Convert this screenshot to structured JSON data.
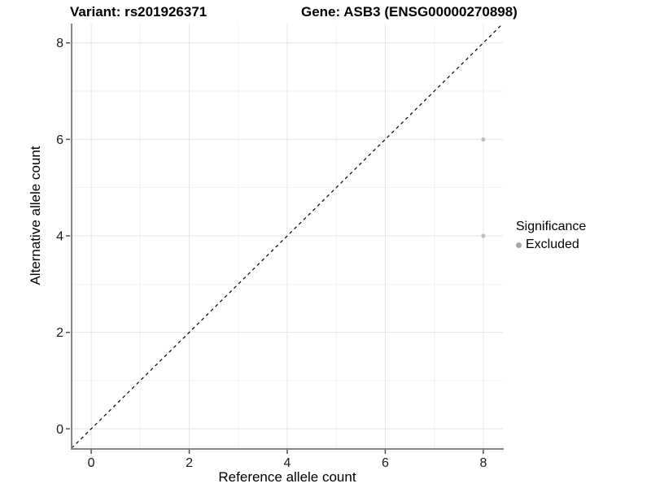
{
  "chart_data": {
    "type": "scatter",
    "title_left": "Variant: rs201926371",
    "title_right": "Gene: ASB3 (ENSG00000270898)",
    "xlabel": "Reference allele count",
    "ylabel": "Alternative allele count",
    "xlim": [
      -0.4,
      8.4
    ],
    "ylim": [
      -0.4,
      8.4
    ],
    "xticks": [
      0,
      2,
      4,
      6,
      8
    ],
    "yticks": [
      0,
      2,
      4,
      6,
      8
    ],
    "minor_xticks": [
      1,
      3,
      5,
      7
    ],
    "minor_yticks": [
      1,
      3,
      5,
      7
    ],
    "grid": true,
    "reference_line": {
      "style": "dashed",
      "from": [
        -0.4,
        -0.4
      ],
      "to": [
        8.4,
        8.4
      ],
      "color": "#000000"
    },
    "series": [
      {
        "name": "Excluded",
        "color": "#bfbfbf",
        "points": [
          {
            "x": 8,
            "y": 6
          },
          {
            "x": 8,
            "y": 4
          }
        ]
      }
    ],
    "legend": {
      "title": "Significance",
      "position": "right",
      "items": [
        {
          "label": "Excluded",
          "color": "#a6a6a6"
        }
      ]
    }
  },
  "colors": {
    "background": "#ffffff",
    "grid_major": "#e6e6e6",
    "grid_minor": "#f2f2f2",
    "axis_line": "#858585",
    "tick_mark": "#4d4d4d",
    "tick_label": "#1a1a1a",
    "point": "#bfbfbf"
  }
}
